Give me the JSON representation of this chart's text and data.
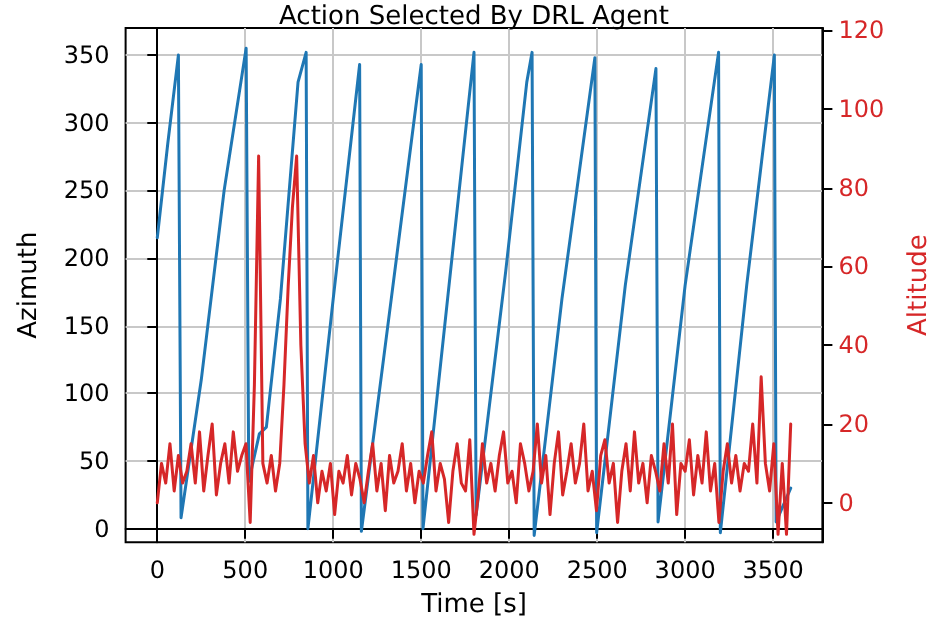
{
  "chart_data": {
    "type": "line",
    "title": "Action Selected By DRL Agent",
    "xlabel": "Time [s]",
    "ylabel": "Azimuth",
    "y2label": "Altitude",
    "xlim": [
      -180,
      3780
    ],
    "xticks": [
      0,
      500,
      1000,
      1500,
      2000,
      2500,
      3000,
      3500
    ],
    "ylim": [
      -10,
      370
    ],
    "yticks": [
      0,
      50,
      100,
      150,
      200,
      250,
      300,
      350
    ],
    "y2lim": [
      -10,
      120.5
    ],
    "y2ticks": [
      0,
      20,
      40,
      60,
      80,
      100,
      120
    ],
    "grid": true,
    "marker": "none",
    "line_style": "solid",
    "series": [
      {
        "color": "#1f77b4",
        "x": [
          0,
          60,
          120,
          135,
          250,
          380,
          505,
          520,
          580,
          620,
          700,
          800,
          846,
          856,
          1000,
          1150,
          1160,
          1330,
          1500,
          1510,
          1650,
          1800,
          1812,
          1980,
          2100,
          2130,
          2142,
          2300,
          2487,
          2497,
          2660,
          2834,
          2846,
          3000,
          3190,
          3200,
          3350,
          3507,
          3517,
          3600
        ],
        "values": [
          215,
          285,
          350,
          8,
          110,
          250,
          355,
          35,
          70,
          75,
          170,
          330,
          352,
          0,
          170,
          343,
          -2,
          170,
          343,
          0,
          170,
          352,
          10,
          190,
          330,
          352,
          -5,
          170,
          348,
          -3,
          180,
          340,
          5,
          180,
          352,
          -3,
          180,
          350,
          5,
          30
        ]
      },
      {
        "color": "#d62728",
        "axis": "y2",
        "x": [
          0,
          24,
          48,
          72,
          96,
          120,
          144,
          168,
          192,
          216,
          240,
          264,
          288,
          312,
          336,
          360,
          384,
          408,
          432,
          456,
          480,
          504,
          528,
          552,
          576,
          600,
          624,
          648,
          672,
          696,
          720,
          744,
          768,
          792,
          816,
          840,
          864,
          888,
          912,
          936,
          960,
          984,
          1008,
          1032,
          1056,
          1080,
          1104,
          1128,
          1152,
          1176,
          1200,
          1224,
          1248,
          1272,
          1296,
          1320,
          1344,
          1368,
          1392,
          1416,
          1440,
          1464,
          1488,
          1512,
          1536,
          1560,
          1584,
          1608,
          1632,
          1656,
          1680,
          1704,
          1728,
          1752,
          1776,
          1800,
          1824,
          1848,
          1872,
          1896,
          1920,
          1944,
          1968,
          1992,
          2016,
          2040,
          2064,
          2088,
          2112,
          2136,
          2160,
          2184,
          2208,
          2232,
          2256,
          2280,
          2304,
          2328,
          2352,
          2376,
          2400,
          2424,
          2448,
          2472,
          2496,
          2520,
          2544,
          2568,
          2592,
          2616,
          2640,
          2664,
          2688,
          2712,
          2736,
          2760,
          2784,
          2808,
          2832,
          2856,
          2880,
          2904,
          2928,
          2952,
          2976,
          3000,
          3024,
          3048,
          3072,
          3096,
          3120,
          3144,
          3168,
          3192,
          3216,
          3240,
          3264,
          3288,
          3312,
          3336,
          3360,
          3384,
          3408,
          3432,
          3456,
          3480,
          3504,
          3528,
          3552,
          3576,
          3600
        ],
        "values": [
          0,
          10,
          5,
          15,
          3,
          12,
          5,
          8,
          15,
          5,
          18,
          3,
          12,
          20,
          2,
          10,
          15,
          5,
          18,
          8,
          12,
          15,
          -5,
          30,
          88,
          10,
          5,
          12,
          3,
          10,
          30,
          55,
          75,
          88,
          40,
          15,
          5,
          12,
          0,
          8,
          3,
          10,
          -3,
          8,
          5,
          12,
          2,
          10,
          6,
          0,
          8,
          15,
          3,
          10,
          -2,
          12,
          5,
          8,
          15,
          3,
          10,
          0,
          8,
          5,
          12,
          18,
          3,
          10,
          6,
          -5,
          8,
          15,
          5,
          3,
          16,
          -8,
          2,
          15,
          5,
          10,
          3,
          12,
          18,
          5,
          8,
          0,
          15,
          10,
          3,
          8,
          20,
          5,
          12,
          -3,
          10,
          18,
          2,
          8,
          15,
          5,
          10,
          20,
          3,
          8,
          -2,
          12,
          16,
          5,
          10,
          -5,
          8,
          15,
          3,
          18,
          5,
          10,
          0,
          12,
          8,
          3,
          15,
          5,
          20,
          -3,
          10,
          8,
          16,
          2,
          12,
          5,
          18,
          3,
          10,
          -5,
          8,
          15,
          5,
          12,
          3,
          10,
          8,
          20,
          5,
          32,
          10,
          3,
          15,
          -8,
          10,
          -8,
          20
        ]
      }
    ]
  }
}
